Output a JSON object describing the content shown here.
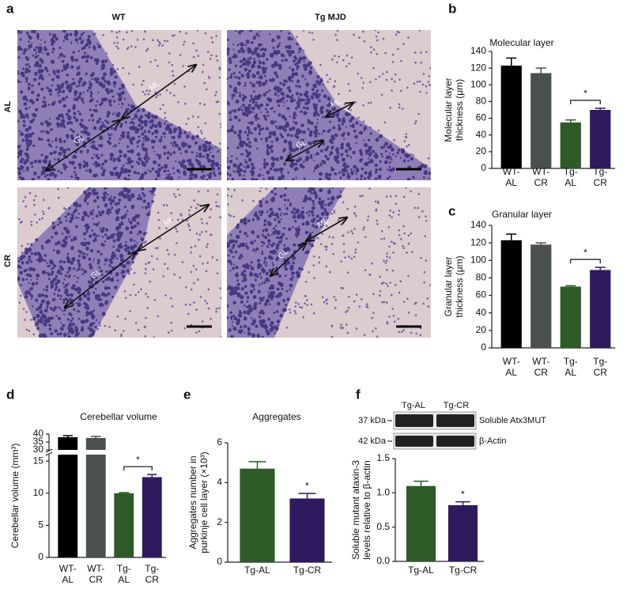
{
  "micrographs": {
    "panel": "a",
    "columns": [
      "WT",
      "Tg MJD"
    ],
    "rows": [
      "AL",
      "CR"
    ],
    "images": [
      {
        "labels": [
          "ML",
          "GL"
        ]
      },
      {
        "labels": [
          "ML",
          "GL"
        ]
      },
      {
        "labels": [
          "ML",
          "GL"
        ]
      },
      {
        "labels": [
          "ML",
          "GL"
        ]
      }
    ]
  },
  "blot": {
    "lanes": [
      "Tg-AL",
      "Tg-CR"
    ],
    "bands": [
      {
        "size": "37 kDa",
        "name": "Soluble Atx3MUT"
      },
      {
        "size": "42 kDa",
        "name": "β-Actin"
      }
    ]
  },
  "chart_data": [
    {
      "panel": "b",
      "type": "bar",
      "title": "Molecular layer",
      "ylabel": "Molecular layer\nthickness (μm)",
      "categories": [
        "WT-\nAL",
        "WT-\nCR",
        "Tg-\nAL",
        "Tg-\nCR"
      ],
      "values": [
        123,
        114,
        55,
        70
      ],
      "errors": [
        9,
        6,
        3,
        2
      ],
      "colors": [
        "#000000",
        "#4a5050",
        "#2d5a27",
        "#2e1a5c"
      ],
      "ylim": [
        0,
        140
      ],
      "yticks": [
        0,
        20,
        40,
        60,
        80,
        100,
        120,
        140
      ],
      "significance_label": "*",
      "significance_bracket": true
    },
    {
      "panel": "c",
      "type": "bar",
      "title": "Granular layer",
      "ylabel": "Granular layer\nthickness (μm)",
      "categories": [
        "WT-\nAL",
        "WT-\nCR",
        "Tg-\nAL",
        "Tg-\nCR"
      ],
      "values": [
        123,
        118,
        70,
        89
      ],
      "errors": [
        7,
        2,
        1,
        3
      ],
      "colors": [
        "#000000",
        "#4a5050",
        "#2d5a27",
        "#2e1a5c"
      ],
      "ylim": [
        0,
        140
      ],
      "yticks": [
        0,
        20,
        40,
        60,
        80,
        100,
        120,
        140
      ],
      "significance_label": "*",
      "significance_bracket": true
    },
    {
      "panel": "d",
      "type": "bar",
      "title": "Cerebellar volume",
      "ylabel": "Cerebellar volume (mm³)",
      "categories": [
        "WT-\nAL",
        "WT-\nCR",
        "Tg-\nAL",
        "Tg-\nCR"
      ],
      "values": [
        38,
        37.5,
        10,
        12.5
      ],
      "errors": [
        1,
        1,
        0.1,
        0.4
      ],
      "colors": [
        "#000000",
        "#4a5050",
        "#2d5a27",
        "#2e1a5c"
      ],
      "ylim": [
        0,
        40
      ],
      "ybreak": [
        16,
        30
      ],
      "yticks": [
        0,
        5,
        10,
        15,
        30,
        35,
        40
      ],
      "significance_label": "*",
      "significance_bracket": true
    },
    {
      "panel": "e",
      "type": "bar",
      "title": "Aggregates",
      "ylabel": "Aggregates number in\npurkinje cell layer (×10³)",
      "categories": [
        "Tg-AL",
        "Tg-CR"
      ],
      "values": [
        4.7,
        3.2
      ],
      "errors": [
        0.35,
        0.25
      ],
      "colors": [
        "#2d5a27",
        "#2e1a5c"
      ],
      "ylim": [
        0,
        6
      ],
      "yticks": [
        0,
        2,
        4,
        6
      ],
      "significance_label": "*",
      "significance_bracket": false
    },
    {
      "panel": "f",
      "type": "bar",
      "ylabel": "Soluble mutant ataxin-3\nlevels relative to β-actin",
      "categories": [
        "Tg-AL",
        "Tg-CR"
      ],
      "values": [
        1.1,
        0.82
      ],
      "errors": [
        0.07,
        0.05
      ],
      "colors": [
        "#2d5a27",
        "#2e1a5c"
      ],
      "ylim": [
        0,
        1.5
      ],
      "yticks": [
        {
          "value": 0,
          "label": "0.0"
        },
        0.5,
        {
          "value": 1,
          "label": "1.0"
        },
        1.5
      ],
      "significance_label": "*",
      "significance_bracket": false
    }
  ]
}
